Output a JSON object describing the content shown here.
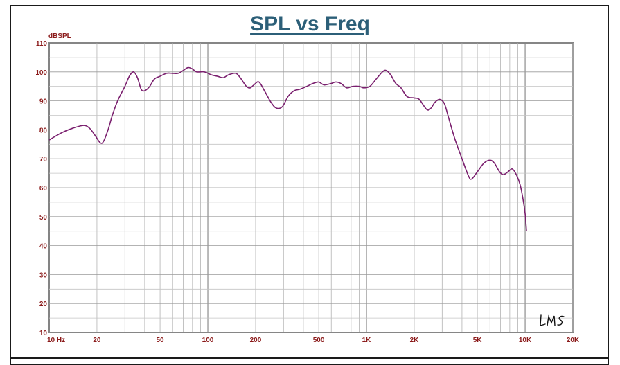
{
  "chart_data": {
    "type": "line",
    "title": "SPL vs Freq",
    "ylabel": "dBSPL",
    "xlabel": "",
    "x_scale": "log",
    "xlim": [
      10,
      20000
    ],
    "ylim": [
      10,
      110
    ],
    "grid": true,
    "x_ticks": [
      {
        "v": 10,
        "label": "10  Hz"
      },
      {
        "v": 20,
        "label": "20"
      },
      {
        "v": 50,
        "label": "50"
      },
      {
        "v": 100,
        "label": "100"
      },
      {
        "v": 200,
        "label": "200"
      },
      {
        "v": 500,
        "label": "500"
      },
      {
        "v": 1000,
        "label": "1K"
      },
      {
        "v": 2000,
        "label": "2K"
      },
      {
        "v": 5000,
        "label": "5K"
      },
      {
        "v": 10000,
        "label": "10K"
      },
      {
        "v": 20000,
        "label": "20K"
      }
    ],
    "y_ticks": [
      10,
      20,
      30,
      40,
      50,
      60,
      70,
      80,
      90,
      100,
      110
    ],
    "series": [
      {
        "color": "#7a1f6e",
        "points": [
          [
            10,
            76.5
          ],
          [
            12,
            79
          ],
          [
            14,
            80.5
          ],
          [
            16.5,
            81.5
          ],
          [
            18,
            80.5
          ],
          [
            19.5,
            78
          ],
          [
            21,
            75.5
          ],
          [
            22,
            76
          ],
          [
            23.5,
            80
          ],
          [
            25,
            85
          ],
          [
            27,
            90
          ],
          [
            30,
            95
          ],
          [
            32,
            98.5
          ],
          [
            34,
            100
          ],
          [
            36,
            98
          ],
          [
            38,
            94
          ],
          [
            40,
            93.5
          ],
          [
            43,
            95
          ],
          [
            46,
            97.5
          ],
          [
            50,
            98.5
          ],
          [
            55,
            99.5
          ],
          [
            60,
            99.5
          ],
          [
            65,
            99.5
          ],
          [
            70,
            100.5
          ],
          [
            75,
            101.5
          ],
          [
            80,
            101
          ],
          [
            85,
            100
          ],
          [
            95,
            100
          ],
          [
            105,
            99
          ],
          [
            115,
            98.5
          ],
          [
            125,
            98
          ],
          [
            135,
            99
          ],
          [
            150,
            99.5
          ],
          [
            160,
            98
          ],
          [
            175,
            95
          ],
          [
            185,
            94.5
          ],
          [
            195,
            95.5
          ],
          [
            210,
            96.5
          ],
          [
            230,
            93
          ],
          [
            250,
            89.5
          ],
          [
            270,
            87.5
          ],
          [
            295,
            88
          ],
          [
            320,
            91.5
          ],
          [
            350,
            93.5
          ],
          [
            380,
            94
          ],
          [
            420,
            95
          ],
          [
            460,
            96
          ],
          [
            500,
            96.5
          ],
          [
            540,
            95.5
          ],
          [
            600,
            96
          ],
          [
            640,
            96.5
          ],
          [
            690,
            96
          ],
          [
            750,
            94.5
          ],
          [
            820,
            95
          ],
          [
            900,
            95
          ],
          [
            960,
            94.5
          ],
          [
            1050,
            95
          ],
          [
            1150,
            97.5
          ],
          [
            1260,
            100
          ],
          [
            1330,
            100.5
          ],
          [
            1420,
            99
          ],
          [
            1530,
            96
          ],
          [
            1650,
            94.5
          ],
          [
            1800,
            91.5
          ],
          [
            2000,
            91
          ],
          [
            2150,
            90.5
          ],
          [
            2400,
            87
          ],
          [
            2550,
            87.5
          ],
          [
            2700,
            89.5
          ],
          [
            2900,
            90.5
          ],
          [
            3100,
            89
          ],
          [
            3300,
            84
          ],
          [
            3600,
            77
          ],
          [
            4000,
            70
          ],
          [
            4400,
            64
          ],
          [
            4600,
            63
          ],
          [
            5000,
            65.5
          ],
          [
            5500,
            68.5
          ],
          [
            6000,
            69.5
          ],
          [
            6400,
            68.5
          ],
          [
            6900,
            65.5
          ],
          [
            7300,
            64.5
          ],
          [
            7800,
            65.5
          ],
          [
            8300,
            66.5
          ],
          [
            8800,
            64.5
          ],
          [
            9300,
            61
          ],
          [
            9700,
            56
          ],
          [
            10000,
            51
          ],
          [
            10200,
            45
          ]
        ]
      }
    ]
  },
  "logo_text": "LMS"
}
